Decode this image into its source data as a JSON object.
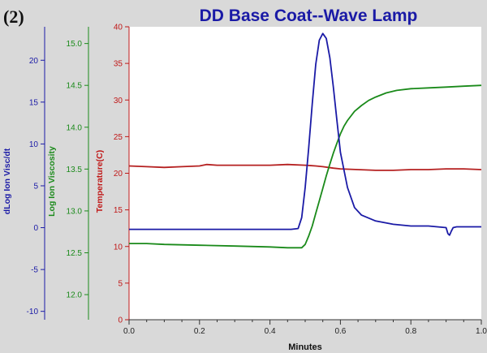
{
  "panel_label": "(2)",
  "chart_data": {
    "type": "line",
    "title": "DD Base Coat--Wave Lamp",
    "xlabel": "Minutes",
    "xlim": [
      0.0,
      1.0
    ],
    "x_ticks": [
      "0.0",
      "0.2",
      "0.4",
      "0.6",
      "0.8",
      "1.0"
    ],
    "grid": false,
    "axes": [
      {
        "id": "dlog",
        "label": "dLog Ion Visc/dt",
        "color": "#1a1aa6",
        "lim": [
          -11,
          24
        ],
        "ticks": [
          "-10",
          "-5",
          "0",
          "5",
          "10",
          "15",
          "20"
        ]
      },
      {
        "id": "logvisc",
        "label": "Log Ion Viscosity",
        "color": "#1a8a1a",
        "lim": [
          11.7,
          15.2
        ],
        "ticks": [
          "12.0",
          "12.5",
          "13.0",
          "13.5",
          "14.0",
          "14.5",
          "15.0"
        ]
      },
      {
        "id": "temp",
        "label": "Temperature(C)",
        "color": "#c01818",
        "lim": [
          0,
          40
        ],
        "ticks": [
          "0",
          "5",
          "10",
          "15",
          "20",
          "25",
          "30",
          "35",
          "40"
        ]
      }
    ],
    "series": [
      {
        "axis": "temp",
        "color": "#b52020",
        "x": [
          0.0,
          0.05,
          0.1,
          0.15,
          0.2,
          0.22,
          0.25,
          0.3,
          0.35,
          0.4,
          0.45,
          0.5,
          0.53,
          0.55,
          0.58,
          0.6,
          0.65,
          0.7,
          0.75,
          0.8,
          0.85,
          0.9,
          0.95,
          1.0
        ],
        "values": [
          21.0,
          20.9,
          20.8,
          20.9,
          21.0,
          21.2,
          21.1,
          21.1,
          21.1,
          21.1,
          21.2,
          21.1,
          21.0,
          20.9,
          20.7,
          20.6,
          20.5,
          20.4,
          20.4,
          20.5,
          20.5,
          20.6,
          20.6,
          20.5
        ]
      },
      {
        "axis": "logvisc",
        "color": "#1a8a1a",
        "x": [
          0.0,
          0.05,
          0.1,
          0.2,
          0.3,
          0.4,
          0.45,
          0.49,
          0.5,
          0.51,
          0.52,
          0.53,
          0.54,
          0.55,
          0.56,
          0.57,
          0.58,
          0.59,
          0.6,
          0.61,
          0.62,
          0.64,
          0.66,
          0.68,
          0.7,
          0.73,
          0.76,
          0.8,
          0.85,
          0.9,
          0.95,
          1.0
        ],
        "values": [
          12.61,
          12.61,
          12.6,
          12.59,
          12.58,
          12.57,
          12.56,
          12.56,
          12.6,
          12.7,
          12.82,
          12.97,
          13.12,
          13.27,
          13.42,
          13.56,
          13.69,
          13.81,
          13.92,
          14.01,
          14.08,
          14.19,
          14.26,
          14.32,
          14.36,
          14.41,
          14.44,
          14.46,
          14.47,
          14.48,
          14.49,
          14.5
        ]
      },
      {
        "axis": "dlog",
        "color": "#1a1aa6",
        "x": [
          0.0,
          0.05,
          0.1,
          0.2,
          0.3,
          0.4,
          0.46,
          0.48,
          0.49,
          0.5,
          0.51,
          0.52,
          0.53,
          0.54,
          0.55,
          0.56,
          0.57,
          0.58,
          0.59,
          0.6,
          0.62,
          0.64,
          0.66,
          0.7,
          0.75,
          0.8,
          0.85,
          0.9,
          0.905,
          0.91,
          0.915,
          0.92,
          0.93,
          0.95,
          1.0
        ],
        "values": [
          -0.2,
          -0.2,
          -0.2,
          -0.2,
          -0.2,
          -0.2,
          -0.2,
          -0.1,
          1.2,
          4.8,
          9.5,
          14.8,
          19.5,
          22.4,
          23.2,
          22.6,
          20.3,
          16.8,
          12.8,
          9.0,
          4.8,
          2.4,
          1.5,
          0.8,
          0.4,
          0.2,
          0.2,
          0.0,
          -0.7,
          -0.9,
          -0.4,
          0.0,
          0.1,
          0.1,
          0.1
        ]
      }
    ]
  }
}
